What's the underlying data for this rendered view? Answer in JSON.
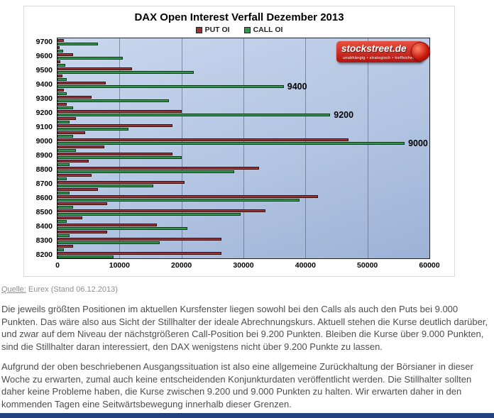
{
  "title": "DAX Open Interest Verfall Dezember 2013",
  "legend": [
    {
      "label": "PUT OI",
      "color": "#9a3334"
    },
    {
      "label": "CALL OI",
      "color": "#2a9a4a"
    }
  ],
  "logo": {
    "text": "stockstreet.de",
    "tagline": "unabhängig • strategisch • treffsicher",
    "color": "#cc1a10"
  },
  "source": {
    "label": "Quelle:",
    "text": "Eurex (Stand 06.12.2013)"
  },
  "paragraphs": [
    "Die jeweils größten Positionen im aktuellen Kursfenster liegen sowohl bei den Calls als auch den Puts bei 9.000 Punkten. Das wäre also aus Sicht der Stillhalter der ideale Abrechnungskurs. Aktuell stehen die Kurse deutlich darüber, und zwar auf dem Niveau der nächstgrößeren Call-Position bei 9.200 Punkten. Bleiben die Kurse über 9.000 Punkten, sind die Stillhalter daran interessiert, den DAX wenigstens nicht über 9.200 Punkte zu lassen.",
    "Aufgrund der oben beschriebenen Ausgangssituation ist also eine allgemeine Zurückhaltung der Börsianer in dieser Woche zu erwarten, zumal auch keine entscheidenden Konjunkturdaten veröffentlicht werden. Die Stillhalter sollten daher keine Probleme haben, die Kurse zwischen 9.200 und 9.000 Punkten zu halten. Wir erwarten daher in den kommenden Tagen eine Seitwärtsbewegung innerhalb dieser Grenzen."
  ],
  "chart_data": {
    "type": "bar",
    "orientation": "horizontal",
    "title": "DAX Open Interest Verfall Dezember 2013",
    "xlim": [
      0,
      60000
    ],
    "x_ticks": [
      0,
      10000,
      20000,
      30000,
      40000,
      50000,
      60000
    ],
    "grid": true,
    "legend_position": "top",
    "categories": [
      9700,
      9650,
      9600,
      9550,
      9500,
      9450,
      9400,
      9350,
      9300,
      9250,
      9200,
      9150,
      9100,
      9050,
      9000,
      8950,
      8900,
      8850,
      8800,
      8750,
      8700,
      8650,
      8600,
      8550,
      8500,
      8450,
      8400,
      8350,
      8300,
      8250,
      8200
    ],
    "labeled_categories_every": 100,
    "series": [
      {
        "name": "PUT OI",
        "color": "#9a3334",
        "values": [
          1000,
          400,
          2500,
          500,
          12000,
          800,
          7800,
          1000,
          5500,
          1500,
          20000,
          3000,
          18500,
          4500,
          47000,
          7500,
          18500,
          5000,
          32500,
          5500,
          20500,
          6500,
          42000,
          8000,
          33500,
          4000,
          16000,
          8000,
          26500,
          2500,
          26500
        ]
      },
      {
        "name": "CALL OI",
        "color": "#2a9a4a",
        "values": [
          6500,
          900,
          10500,
          1300,
          22000,
          1500,
          36500,
          1500,
          18000,
          2500,
          44000,
          2000,
          11500,
          2500,
          56000,
          3000,
          20000,
          2000,
          28500,
          1500,
          15500,
          2000,
          39000,
          2500,
          29500,
          1500,
          21000,
          2000,
          16500,
          1000,
          9000
        ]
      }
    ],
    "annotations": [
      {
        "strike": 9400,
        "label": "9400"
      },
      {
        "strike": 9200,
        "label": "9200"
      },
      {
        "strike": 9000,
        "label": "9000"
      }
    ]
  }
}
